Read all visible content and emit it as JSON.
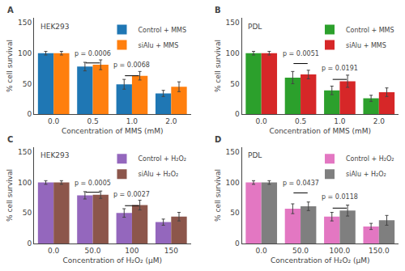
{
  "chart_data": [
    {
      "type": "bar",
      "panel_label": "A",
      "cell_line": "HEK293",
      "xlabel": "Concentration of MMS (mM)",
      "ylabel": "% cell survival",
      "categories": [
        "0.0",
        "0.5",
        "1.0",
        "2.0"
      ],
      "series": [
        {
          "name": "Control + MMS",
          "values": [
            100,
            78,
            49,
            34
          ],
          "error": [
            3,
            7,
            8,
            5
          ]
        },
        {
          "name": "siAlu + MMS",
          "values": [
            100,
            81,
            63,
            45
          ],
          "error": [
            3,
            8,
            7,
            8
          ]
        }
      ],
      "ylim": [
        0,
        158
      ],
      "yticks": [
        0,
        50,
        100,
        150
      ],
      "grid": false,
      "legend": "upper right",
      "annotations": [
        {
          "text": "p = 0.0006",
          "category": "0.5",
          "y": 90,
          "bracket_y": 84
        },
        {
          "text": "p = 0.0068",
          "category": "1.0",
          "y": 72,
          "bracket_y": 63
        }
      ]
    },
    {
      "type": "bar",
      "panel_label": "B",
      "cell_line": "PDL",
      "xlabel": "Concentration of MMS (mM)",
      "ylabel": "% cell survival",
      "categories": [
        "0.0",
        "0.5",
        "1.0",
        "2.0"
      ],
      "series": [
        {
          "name": "Control + MMS",
          "values": [
            100,
            60,
            39,
            26
          ],
          "error": [
            3,
            10,
            7,
            5
          ]
        },
        {
          "name": "siAlu + MMS",
          "values": [
            100,
            65,
            54,
            36
          ],
          "error": [
            3,
            7,
            10,
            7
          ]
        }
      ],
      "ylim": [
        0,
        158
      ],
      "yticks": [
        0,
        50,
        100,
        150
      ],
      "grid": false,
      "legend": "upper right",
      "annotations": [
        {
          "text": "p = 0.0051",
          "category": "0.5",
          "y": 90,
          "bracket_y": 83
        },
        {
          "text": "p = 0.0191",
          "category": "1.0",
          "y": 67,
          "bracket_y": 57
        }
      ]
    },
    {
      "type": "bar",
      "panel_label": "C",
      "cell_line": "HEK293",
      "xlabel": "Concentration of H₂O₂ (μM)",
      "ylabel": "% cell survival",
      "categories": [
        "0.0",
        "50.0",
        "100",
        "150"
      ],
      "series": [
        {
          "name": "Control + H₂O₂",
          "values": [
            100,
            79,
            50,
            35
          ],
          "error": [
            3,
            6,
            7,
            5
          ]
        },
        {
          "name": "siAlu + H₂O₂",
          "values": [
            100,
            80,
            63,
            44
          ],
          "error": [
            3,
            6,
            8,
            7
          ]
        }
      ],
      "ylim": [
        0,
        158
      ],
      "yticks": [
        0,
        50,
        100,
        150
      ],
      "grid": false,
      "legend": "upper right",
      "annotations": [
        {
          "text": "p = 0.0005",
          "category": "50.0",
          "y": 90,
          "bracket_y": 84
        },
        {
          "text": "p = 0.0027",
          "category": "100",
          "y": 72,
          "bracket_y": 62
        }
      ]
    },
    {
      "type": "bar",
      "panel_label": "D",
      "cell_line": "PDL",
      "xlabel": "Concentration of H₂O₂ (μM)",
      "ylabel": "% cell survival",
      "categories": [
        "0.0",
        "50.0",
        "100.0",
        "150.0"
      ],
      "series": [
        {
          "name": "Control + H₂O₂",
          "values": [
            100,
            57,
            44,
            28
          ],
          "error": [
            3,
            8,
            7,
            5
          ]
        },
        {
          "name": "siAlu + H₂O₂",
          "values": [
            100,
            61,
            54,
            38
          ],
          "error": [
            3,
            7,
            9,
            8
          ]
        }
      ],
      "ylim": [
        0,
        158
      ],
      "yticks": [
        0,
        50,
        100,
        150
      ],
      "grid": false,
      "legend": "upper right",
      "annotations": [
        {
          "text": "p = 0.0437",
          "category": "50.0",
          "y": 90,
          "bracket_y": 83
        },
        {
          "text": "p = 0.0118",
          "category": "100.0",
          "y": 67,
          "bracket_y": 58
        }
      ]
    }
  ]
}
